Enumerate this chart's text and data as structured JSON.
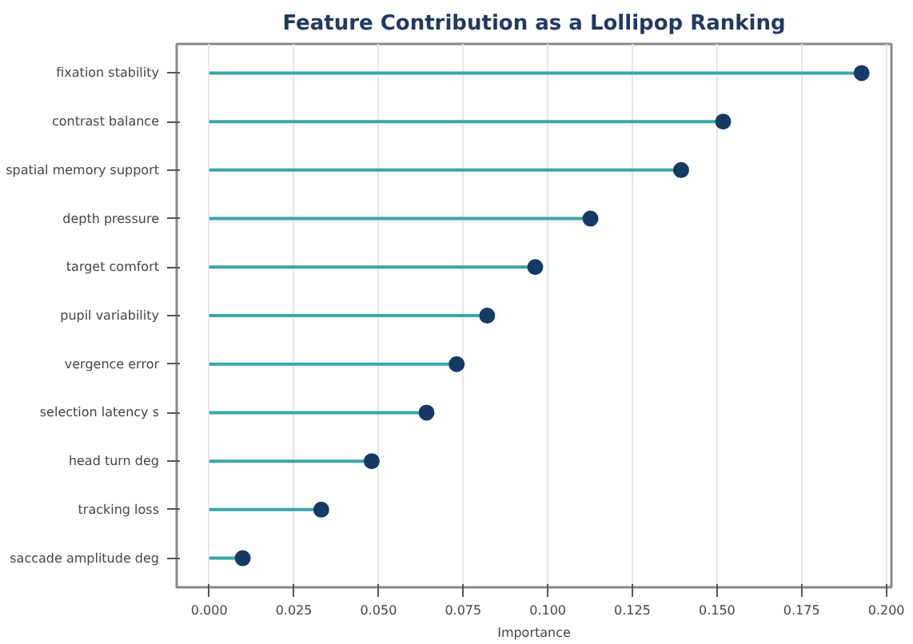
{
  "chart_data": {
    "type": "lollipop",
    "orientation": "horizontal",
    "title": "Feature Contribution as a Lollipop Ranking",
    "xlabel": "Importance",
    "categories": [
      "fixation stability",
      "contrast balance",
      "spatial memory support",
      "depth pressure",
      "target comfort",
      "pupil variability",
      "vergence error",
      "selection latency s",
      "head turn deg",
      "tracking loss",
      "saccade amplitude deg"
    ],
    "series": [
      {
        "color": "#163a66",
        "values": [
          0.1927,
          0.1518,
          0.1394,
          0.1126,
          0.0963,
          0.0821,
          0.0731,
          0.0642,
          0.048,
          0.0331,
          0.0099
        ]
      }
    ],
    "xlim": [
      -0.0096,
      0.2015
    ],
    "xticks": [
      {
        "value": 0,
        "label": "0.000"
      },
      0.025,
      {
        "value": 0.05,
        "label": "0.050"
      },
      0.075,
      {
        "value": 0.1,
        "label": "0.100"
      },
      0.125,
      {
        "value": 0.15,
        "label": "0.150"
      },
      0.175,
      {
        "value": 0.2,
        "label": "0.200"
      }
    ],
    "grid": "x",
    "marker": "circle"
  }
}
